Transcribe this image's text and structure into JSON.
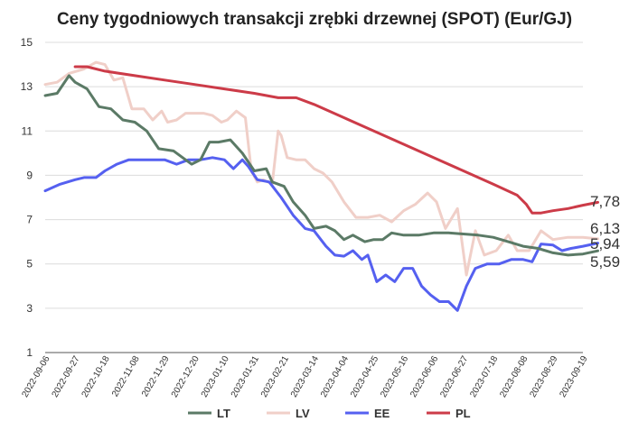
{
  "chart_data": {
    "type": "line",
    "title": "Ceny tygodniowych transakcji zrębki drzewnej (SPOT) (Eur/GJ)",
    "xlabel": "",
    "ylabel": "",
    "ylim": [
      1,
      15
    ],
    "yticks": [
      "1",
      "3",
      "5",
      "7",
      "9",
      "11",
      "13",
      "15"
    ],
    "grid": true,
    "legend": "bottom",
    "x_tick_labels": [
      "2022-09-06",
      "2022-09-27",
      "2022-10-18",
      "2022-11-08",
      "2022-11-29",
      "2022-12-20",
      "2023-01-10",
      "2023-01-31",
      "2023-02-21",
      "2023-03-14",
      "2023-04-04",
      "2023-04-25",
      "2023-05-16",
      "2023-06-06",
      "2023-06-27",
      "2023-07-18",
      "2023-08-08",
      "2023-08-29",
      "2023-09-19"
    ],
    "series": [
      {
        "name": "LT",
        "color": "#5b7a66",
        "end_label": "5,59",
        "values": [
          [
            0,
            12.6
          ],
          [
            0.4,
            12.7
          ],
          [
            0.8,
            13.5
          ],
          [
            1.0,
            13.2
          ],
          [
            1.4,
            12.9
          ],
          [
            1.8,
            12.1
          ],
          [
            2.2,
            12.0
          ],
          [
            2.6,
            11.5
          ],
          [
            3.0,
            11.4
          ],
          [
            3.4,
            11.0
          ],
          [
            3.8,
            10.2
          ],
          [
            4.3,
            10.1
          ],
          [
            4.6,
            9.8
          ],
          [
            4.9,
            9.5
          ],
          [
            5.2,
            9.7
          ],
          [
            5.5,
            10.5
          ],
          [
            5.8,
            10.5
          ],
          [
            6.2,
            10.6
          ],
          [
            6.6,
            10.0
          ],
          [
            7.0,
            9.2
          ],
          [
            7.4,
            9.3
          ],
          [
            7.6,
            8.7
          ],
          [
            8.0,
            8.5
          ],
          [
            8.3,
            7.8
          ],
          [
            8.7,
            7.2
          ],
          [
            9.0,
            6.6
          ],
          [
            9.4,
            6.7
          ],
          [
            9.7,
            6.5
          ],
          [
            10.0,
            6.1
          ],
          [
            10.3,
            6.3
          ],
          [
            10.7,
            6.0
          ],
          [
            11.0,
            6.1
          ],
          [
            11.3,
            6.1
          ],
          [
            11.6,
            6.4
          ],
          [
            12.0,
            6.3
          ],
          [
            12.5,
            6.3
          ],
          [
            13.0,
            6.4
          ],
          [
            13.5,
            6.4
          ],
          [
            14.0,
            6.35
          ],
          [
            14.5,
            6.3
          ],
          [
            15.0,
            6.2
          ],
          [
            15.5,
            6.0
          ],
          [
            16.0,
            5.8
          ],
          [
            16.5,
            5.7
          ],
          [
            17.0,
            5.5
          ],
          [
            17.5,
            5.4
          ],
          [
            18.0,
            5.45
          ],
          [
            18.5,
            5.59
          ]
        ]
      },
      {
        "name": "LV",
        "color": "#f0cfc8",
        "end_label": "6,13",
        "values": [
          [
            0,
            13.1
          ],
          [
            0.4,
            13.2
          ],
          [
            0.8,
            13.6
          ],
          [
            1.3,
            13.8
          ],
          [
            1.7,
            14.1
          ],
          [
            2.0,
            14.0
          ],
          [
            2.3,
            13.3
          ],
          [
            2.6,
            13.4
          ],
          [
            2.9,
            12.0
          ],
          [
            3.3,
            12.0
          ],
          [
            3.6,
            11.5
          ],
          [
            3.9,
            11.9
          ],
          [
            4.1,
            11.4
          ],
          [
            4.4,
            11.5
          ],
          [
            4.7,
            11.8
          ],
          [
            5.0,
            11.8
          ],
          [
            5.3,
            11.8
          ],
          [
            5.6,
            11.7
          ],
          [
            5.9,
            11.4
          ],
          [
            6.1,
            11.5
          ],
          [
            6.4,
            11.9
          ],
          [
            6.7,
            11.6
          ],
          [
            6.9,
            9.2
          ],
          [
            7.1,
            8.7
          ],
          [
            7.3,
            8.8
          ],
          [
            7.6,
            8.6
          ],
          [
            7.8,
            11.0
          ],
          [
            7.9,
            10.8
          ],
          [
            8.1,
            9.8
          ],
          [
            8.4,
            9.7
          ],
          [
            8.7,
            9.7
          ],
          [
            9.0,
            9.3
          ],
          [
            9.3,
            9.1
          ],
          [
            9.6,
            8.7
          ],
          [
            10.0,
            7.8
          ],
          [
            10.4,
            7.1
          ],
          [
            10.8,
            7.1
          ],
          [
            11.2,
            7.2
          ],
          [
            11.6,
            6.9
          ],
          [
            12.0,
            7.4
          ],
          [
            12.4,
            7.7
          ],
          [
            12.8,
            8.2
          ],
          [
            13.1,
            7.8
          ],
          [
            13.4,
            6.6
          ],
          [
            13.8,
            7.5
          ],
          [
            14.1,
            4.5
          ],
          [
            14.4,
            6.5
          ],
          [
            14.7,
            5.4
          ],
          [
            15.1,
            5.6
          ],
          [
            15.5,
            6.3
          ],
          [
            15.8,
            5.6
          ],
          [
            16.2,
            5.6
          ],
          [
            16.6,
            6.5
          ],
          [
            17.0,
            6.1
          ],
          [
            17.5,
            6.2
          ],
          [
            18.0,
            6.2
          ],
          [
            18.5,
            6.13
          ]
        ]
      },
      {
        "name": "EE",
        "color": "#5560f0",
        "end_label": "5,94",
        "values": [
          [
            0,
            8.3
          ],
          [
            0.5,
            8.6
          ],
          [
            1.0,
            8.8
          ],
          [
            1.3,
            8.9
          ],
          [
            1.7,
            8.9
          ],
          [
            2.0,
            9.2
          ],
          [
            2.4,
            9.5
          ],
          [
            2.8,
            9.7
          ],
          [
            3.2,
            9.7
          ],
          [
            3.6,
            9.7
          ],
          [
            4.0,
            9.7
          ],
          [
            4.4,
            9.5
          ],
          [
            4.8,
            9.7
          ],
          [
            5.2,
            9.7
          ],
          [
            5.6,
            9.8
          ],
          [
            6.0,
            9.7
          ],
          [
            6.3,
            9.3
          ],
          [
            6.6,
            9.7
          ],
          [
            6.8,
            9.4
          ],
          [
            7.1,
            8.8
          ],
          [
            7.5,
            8.7
          ],
          [
            7.9,
            8.0
          ],
          [
            8.3,
            7.2
          ],
          [
            8.7,
            6.6
          ],
          [
            9.0,
            6.5
          ],
          [
            9.4,
            5.8
          ],
          [
            9.7,
            5.4
          ],
          [
            10.0,
            5.35
          ],
          [
            10.3,
            5.6
          ],
          [
            10.6,
            5.2
          ],
          [
            10.8,
            5.4
          ],
          [
            11.1,
            4.2
          ],
          [
            11.4,
            4.5
          ],
          [
            11.7,
            4.2
          ],
          [
            12.0,
            4.8
          ],
          [
            12.3,
            4.8
          ],
          [
            12.6,
            4.0
          ],
          [
            12.9,
            3.6
          ],
          [
            13.2,
            3.3
          ],
          [
            13.5,
            3.3
          ],
          [
            13.8,
            2.9
          ],
          [
            14.1,
            4.0
          ],
          [
            14.4,
            4.8
          ],
          [
            14.8,
            5.0
          ],
          [
            15.2,
            5.0
          ],
          [
            15.6,
            5.2
          ],
          [
            16.0,
            5.2
          ],
          [
            16.3,
            5.1
          ],
          [
            16.6,
            5.9
          ],
          [
            17.0,
            5.85
          ],
          [
            17.3,
            5.6
          ],
          [
            17.6,
            5.7
          ],
          [
            18.0,
            5.8
          ],
          [
            18.5,
            5.94
          ]
        ]
      },
      {
        "name": "PL",
        "color": "#cc3b48",
        "end_label": "7,78",
        "values": [
          [
            1.0,
            13.9
          ],
          [
            1.4,
            13.9
          ],
          [
            2.0,
            13.7
          ],
          [
            3.0,
            13.5
          ],
          [
            4.0,
            13.3
          ],
          [
            5.0,
            13.1
          ],
          [
            6.0,
            12.9
          ],
          [
            7.0,
            12.7
          ],
          [
            7.8,
            12.5
          ],
          [
            8.1,
            12.5
          ],
          [
            8.4,
            12.5
          ],
          [
            9.0,
            12.2
          ],
          [
            10.0,
            11.6
          ],
          [
            11.0,
            11.0
          ],
          [
            12.0,
            10.4
          ],
          [
            13.0,
            9.8
          ],
          [
            14.0,
            9.2
          ],
          [
            15.0,
            8.6
          ],
          [
            15.8,
            8.1
          ],
          [
            16.1,
            7.7
          ],
          [
            16.3,
            7.3
          ],
          [
            16.6,
            7.3
          ],
          [
            17.0,
            7.4
          ],
          [
            17.5,
            7.5
          ],
          [
            18.0,
            7.65
          ],
          [
            18.5,
            7.78
          ]
        ]
      }
    ]
  }
}
